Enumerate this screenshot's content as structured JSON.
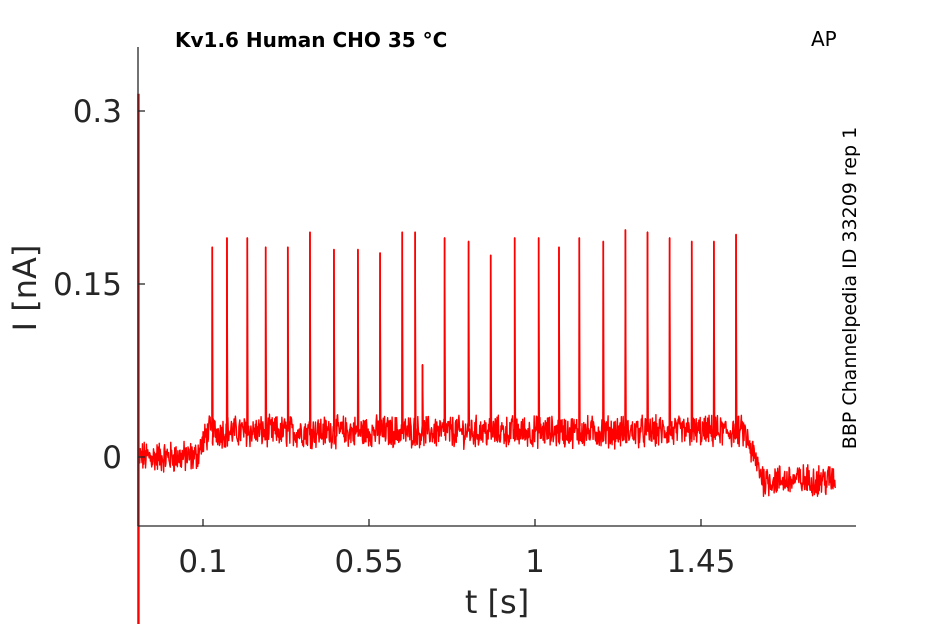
{
  "chart_data": {
    "type": "line",
    "title": "Kv1.6  Human  CHO  35 °C",
    "corner_label": "AP",
    "side_label": "BBP Channelpedia ID 33209 rep 1",
    "xlabel": "t [s]",
    "ylabel": "I [nA]",
    "xlim": [
      -0.08,
      1.87
    ],
    "ylim": [
      -0.06,
      0.357
    ],
    "xticks": [
      0.1,
      0.55,
      1,
      1.45
    ],
    "xtick_labels": [
      "0.1",
      "0.55",
      "1",
      "1.45"
    ],
    "yticks": [
      0,
      0.15,
      0.3
    ],
    "ytick_labels": [
      "0",
      "0.15",
      "0.3"
    ],
    "grid": false,
    "line_color": "#ff0000",
    "series": [
      {
        "baseline_segments": [
          {
            "x": [
              -0.09,
              -0.08,
              -0.07,
              -0.075
            ],
            "y": [
              0.0,
              0.0,
              0.0,
              0.3
            ]
          },
          {
            "x": [
              -0.08,
              0.1
            ],
            "y": [
              0.0,
              0.0
            ]
          },
          {
            "x": [
              0.1,
              1.58
            ],
            "y": [
              0.022,
              0.022
            ]
          },
          {
            "x": [
              1.58,
              1.82
            ],
            "y": [
              -0.02,
              -0.02
            ]
          }
        ],
        "initial_transient": {
          "x": -0.075,
          "y_max": 0.315,
          "y_min": -0.155
        },
        "noise_amplitude": 0.012,
        "spikes": {
          "x": [
            0.125,
            0.165,
            0.22,
            0.27,
            0.33,
            0.39,
            0.455,
            0.52,
            0.58,
            0.64,
            0.675,
            0.695,
            0.755,
            0.82,
            0.88,
            0.945,
            1.01,
            1.065,
            1.12,
            1.185,
            1.245,
            1.305,
            1.365,
            1.425,
            1.485,
            1.545
          ],
          "y": [
            0.182,
            0.19,
            0.19,
            0.182,
            0.182,
            0.195,
            0.18,
            0.18,
            0.177,
            0.195,
            0.195,
            0.08,
            0.19,
            0.187,
            0.175,
            0.19,
            0.19,
            0.182,
            0.19,
            0.187,
            0.197,
            0.195,
            0.19,
            0.187,
            0.187,
            0.193
          ]
        }
      }
    ]
  }
}
